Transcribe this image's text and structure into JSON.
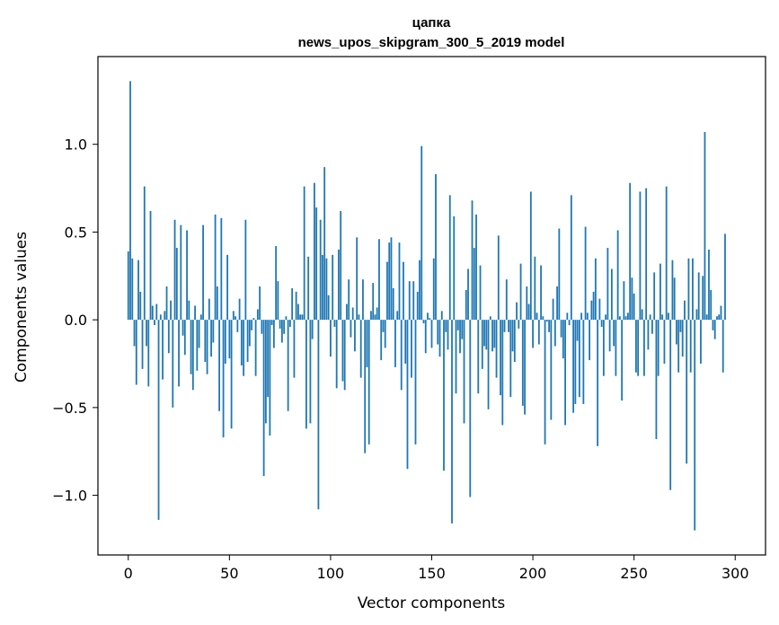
{
  "chart_data": {
    "type": "bar",
    "title": "цапка",
    "subtitle": "news_upos_skipgram_300_5_2019 model",
    "xlabel": "Vector components",
    "ylabel": "Components values",
    "xlim": [
      -15,
      315
    ],
    "ylim": [
      -1.34,
      1.5
    ],
    "xticks": [
      0,
      50,
      100,
      150,
      200,
      250,
      300
    ],
    "xtick_labels": [
      "0",
      "50",
      "100",
      "150",
      "200",
      "250",
      "300"
    ],
    "yticks": [
      -1.0,
      -0.5,
      0.0,
      0.5,
      1.0
    ],
    "ytick_labels": [
      "−1.0",
      "−0.5",
      "0.0",
      "0.5",
      "1.0"
    ],
    "grid": false,
    "bar_color": "#1f77b4",
    "values": [
      0.39,
      1.36,
      0.35,
      -0.15,
      -0.37,
      0.34,
      0.16,
      -0.28,
      0.76,
      -0.15,
      -0.38,
      0.62,
      0.08,
      -0.03,
      0.09,
      -1.14,
      0.03,
      -0.34,
      0.05,
      0.19,
      -0.19,
      0.11,
      -0.5,
      0.57,
      0.41,
      -0.38,
      0.54,
      -0.09,
      -0.2,
      0.51,
      0.11,
      -0.31,
      -0.4,
      0.08,
      -0.29,
      -0.16,
      0.03,
      0.54,
      -0.24,
      -0.31,
      0.12,
      -0.21,
      -0.13,
      0.6,
      0.19,
      -0.52,
      0.58,
      -0.67,
      -0.25,
      0.37,
      -0.22,
      -0.62,
      0.05,
      0.02,
      -0.07,
      0.12,
      -0.26,
      -0.32,
      0.57,
      -0.24,
      -0.15,
      -0.06,
      0.01,
      -0.32,
      0.06,
      0.19,
      -0.08,
      -0.89,
      -0.59,
      -0.44,
      -0.66,
      -0.03,
      -0.16,
      0.42,
      0.22,
      -0.05,
      -0.13,
      -0.08,
      0.02,
      -0.52,
      -0.04,
      0.18,
      -0.33,
      0.16,
      0.09,
      0.03,
      0.03,
      0.76,
      -0.62,
      0.36,
      -0.59,
      -0.11,
      0.78,
      0.64,
      -1.08,
      0.57,
      0.37,
      0.87,
      0.35,
      0.14,
      -0.21,
      0.37,
      -0.04,
      -0.39,
      0.4,
      0.62,
      -0.35,
      -0.4,
      0.09,
      0.23,
      -0.1,
      0.07,
      -0.18,
      0.47,
      0.03,
      -0.33,
      0.23,
      -0.76,
      -0.27,
      -0.71,
      0.05,
      0.21,
      0.03,
      0.07,
      0.46,
      -0.23,
      -0.07,
      -0.16,
      0.33,
      0.44,
      0.47,
      0.18,
      -0.27,
      0.05,
      0.44,
      -0.4,
      0.33,
      -0.25,
      -0.85,
      0.22,
      -0.33,
      0.22,
      -0.71,
      0.16,
      0.34,
      0.99,
      -0.02,
      -0.19,
      0.04,
      0.01,
      -0.16,
      0.35,
      0.83,
      -0.14,
      -0.21,
      0.05,
      -0.86,
      -0.07,
      -0.17,
      0.71,
      -1.16,
      0.59,
      -0.42,
      -0.06,
      -0.19,
      -0.11,
      -0.59,
      0.17,
      0.29,
      -1.01,
      0.68,
      0.41,
      0.6,
      -0.42,
      0.31,
      -0.28,
      -0.15,
      -0.17,
      -0.51,
      0.02,
      -0.18,
      -0.16,
      -0.33,
      0.48,
      -0.43,
      -0.6,
      -0.07,
      0.23,
      -0.07,
      -0.44,
      -0.18,
      -0.24,
      0.1,
      -0.05,
      0.32,
      -0.49,
      -0.54,
      0.19,
      0.09,
      0.73,
      -0.16,
      0.36,
      0.04,
      -0.14,
      0.31,
      0.02,
      -0.71,
      -0.01,
      -0.07,
      -0.57,
      0.12,
      -0.15,
      0.19,
      0.52,
      -0.1,
      -0.22,
      -0.6,
      0.04,
      -0.03,
      0.71,
      -0.53,
      -0.48,
      -0.12,
      -0.44,
      0.04,
      -0.48,
      0.53,
      0.04,
      -0.23,
      0.11,
      0.16,
      0.35,
      -0.72,
      0.12,
      -0.04,
      -0.32,
      0.03,
      0.41,
      -0.18,
      0.29,
      -0.15,
      -0.32,
      0.51,
      0.02,
      -0.46,
      0.22,
      0.02,
      0.04,
      0.78,
      0.24,
      0.15,
      -0.3,
      -0.32,
      0.73,
      0.06,
      -0.32,
      0.75,
      -0.17,
      0.03,
      -0.08,
      0.27,
      -0.68,
      -0.32,
      0.32,
      0.03,
      -0.25,
      0.76,
      0.04,
      -0.97,
      0.34,
      0.24,
      -0.14,
      -0.3,
      -0.07,
      -0.21,
      0.11,
      -0.82,
      0.35,
      -0.3,
      0.35,
      -1.2,
      0.06,
      0.27,
      -0.25,
      0.25,
      1.07,
      0.03,
      0.4,
      0.17,
      -0.06,
      -0.11,
      0.02,
      0.03,
      0.08,
      -0.3,
      0.49
    ]
  }
}
